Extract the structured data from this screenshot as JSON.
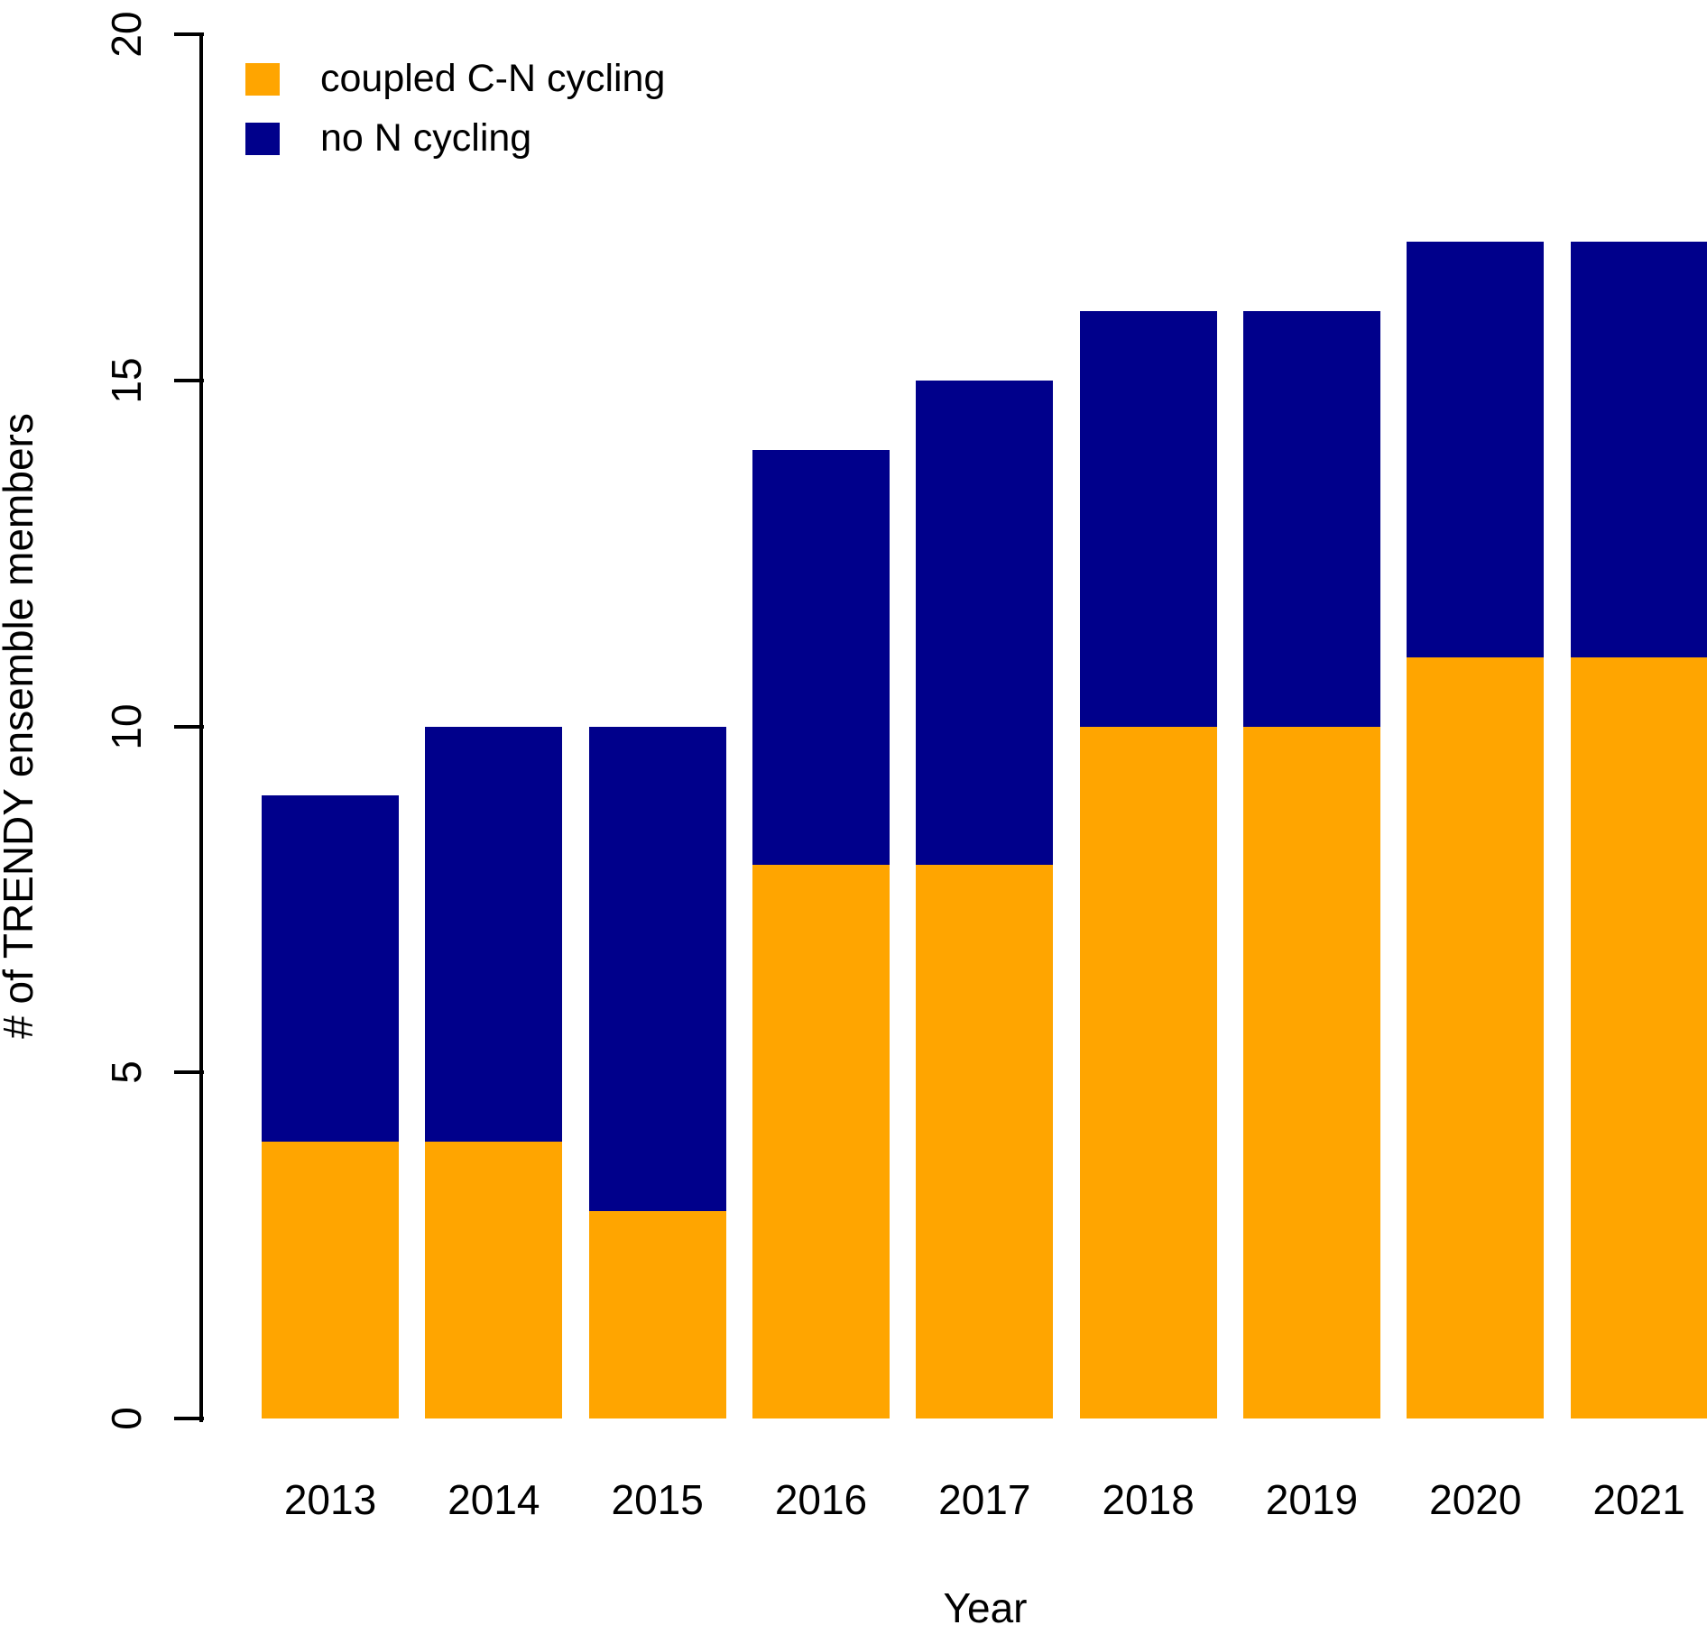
{
  "chart_data": {
    "type": "bar",
    "stacked": true,
    "categories": [
      "2013",
      "2014",
      "2015",
      "2016",
      "2017",
      "2018",
      "2019",
      "2020",
      "2021"
    ],
    "series": [
      {
        "name": "coupled C-N cycling",
        "color": "#FFA500",
        "values": [
          4,
          4,
          3,
          8,
          8,
          10,
          10,
          11,
          11
        ]
      },
      {
        "name": "no N cycling",
        "color": "#00008B",
        "values": [
          5,
          6,
          7,
          6,
          7,
          6,
          6,
          6,
          6
        ]
      }
    ],
    "totals": [
      9,
      10,
      10,
      14,
      15,
      16,
      16,
      17,
      17
    ],
    "xlabel": "Year",
    "ylabel": "# of TRENDY ensemble members",
    "ylim": [
      0,
      20
    ],
    "yticks": [
      0,
      5,
      10,
      15,
      20
    ],
    "grid": false,
    "legend_position": "top-left",
    "axis_color": "#000000",
    "background_color": "#FFFFFF"
  }
}
